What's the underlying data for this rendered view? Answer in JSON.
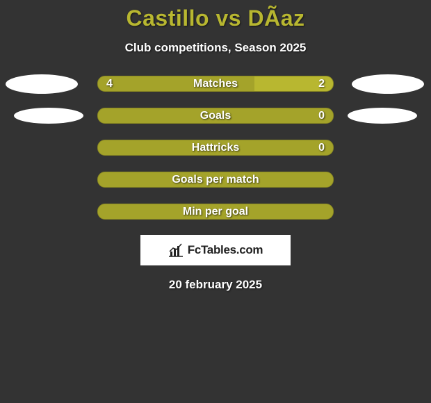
{
  "title": "Castillo vs DÃ­az",
  "subtitle": "Club competitions, Season 2025",
  "colors": {
    "left": "#a4a32a",
    "right": "#b8b730",
    "outline": "#8a8922"
  },
  "stats": [
    {
      "label": "Matches",
      "left_val": "4",
      "right_val": "2",
      "left_pct": 66.7,
      "right_pct": 33.3,
      "show_left": true,
      "show_right": true,
      "show_avatars": true,
      "avatar_class": "av1"
    },
    {
      "label": "Goals",
      "left_val": "",
      "right_val": "0",
      "left_pct": 100,
      "right_pct": 0,
      "show_left": false,
      "show_right": true,
      "show_avatars": true,
      "avatar_class": "av2"
    },
    {
      "label": "Hattricks",
      "left_val": "",
      "right_val": "0",
      "left_pct": 100,
      "right_pct": 0,
      "show_left": false,
      "show_right": true,
      "show_avatars": false
    },
    {
      "label": "Goals per match",
      "left_val": "",
      "right_val": "",
      "left_pct": 100,
      "right_pct": 0,
      "show_left": false,
      "show_right": false,
      "show_avatars": false
    },
    {
      "label": "Min per goal",
      "left_val": "",
      "right_val": "",
      "left_pct": 100,
      "right_pct": 0,
      "show_left": false,
      "show_right": false,
      "show_avatars": false
    }
  ],
  "logo_text": "FcTables.com",
  "date": "20 february 2025"
}
